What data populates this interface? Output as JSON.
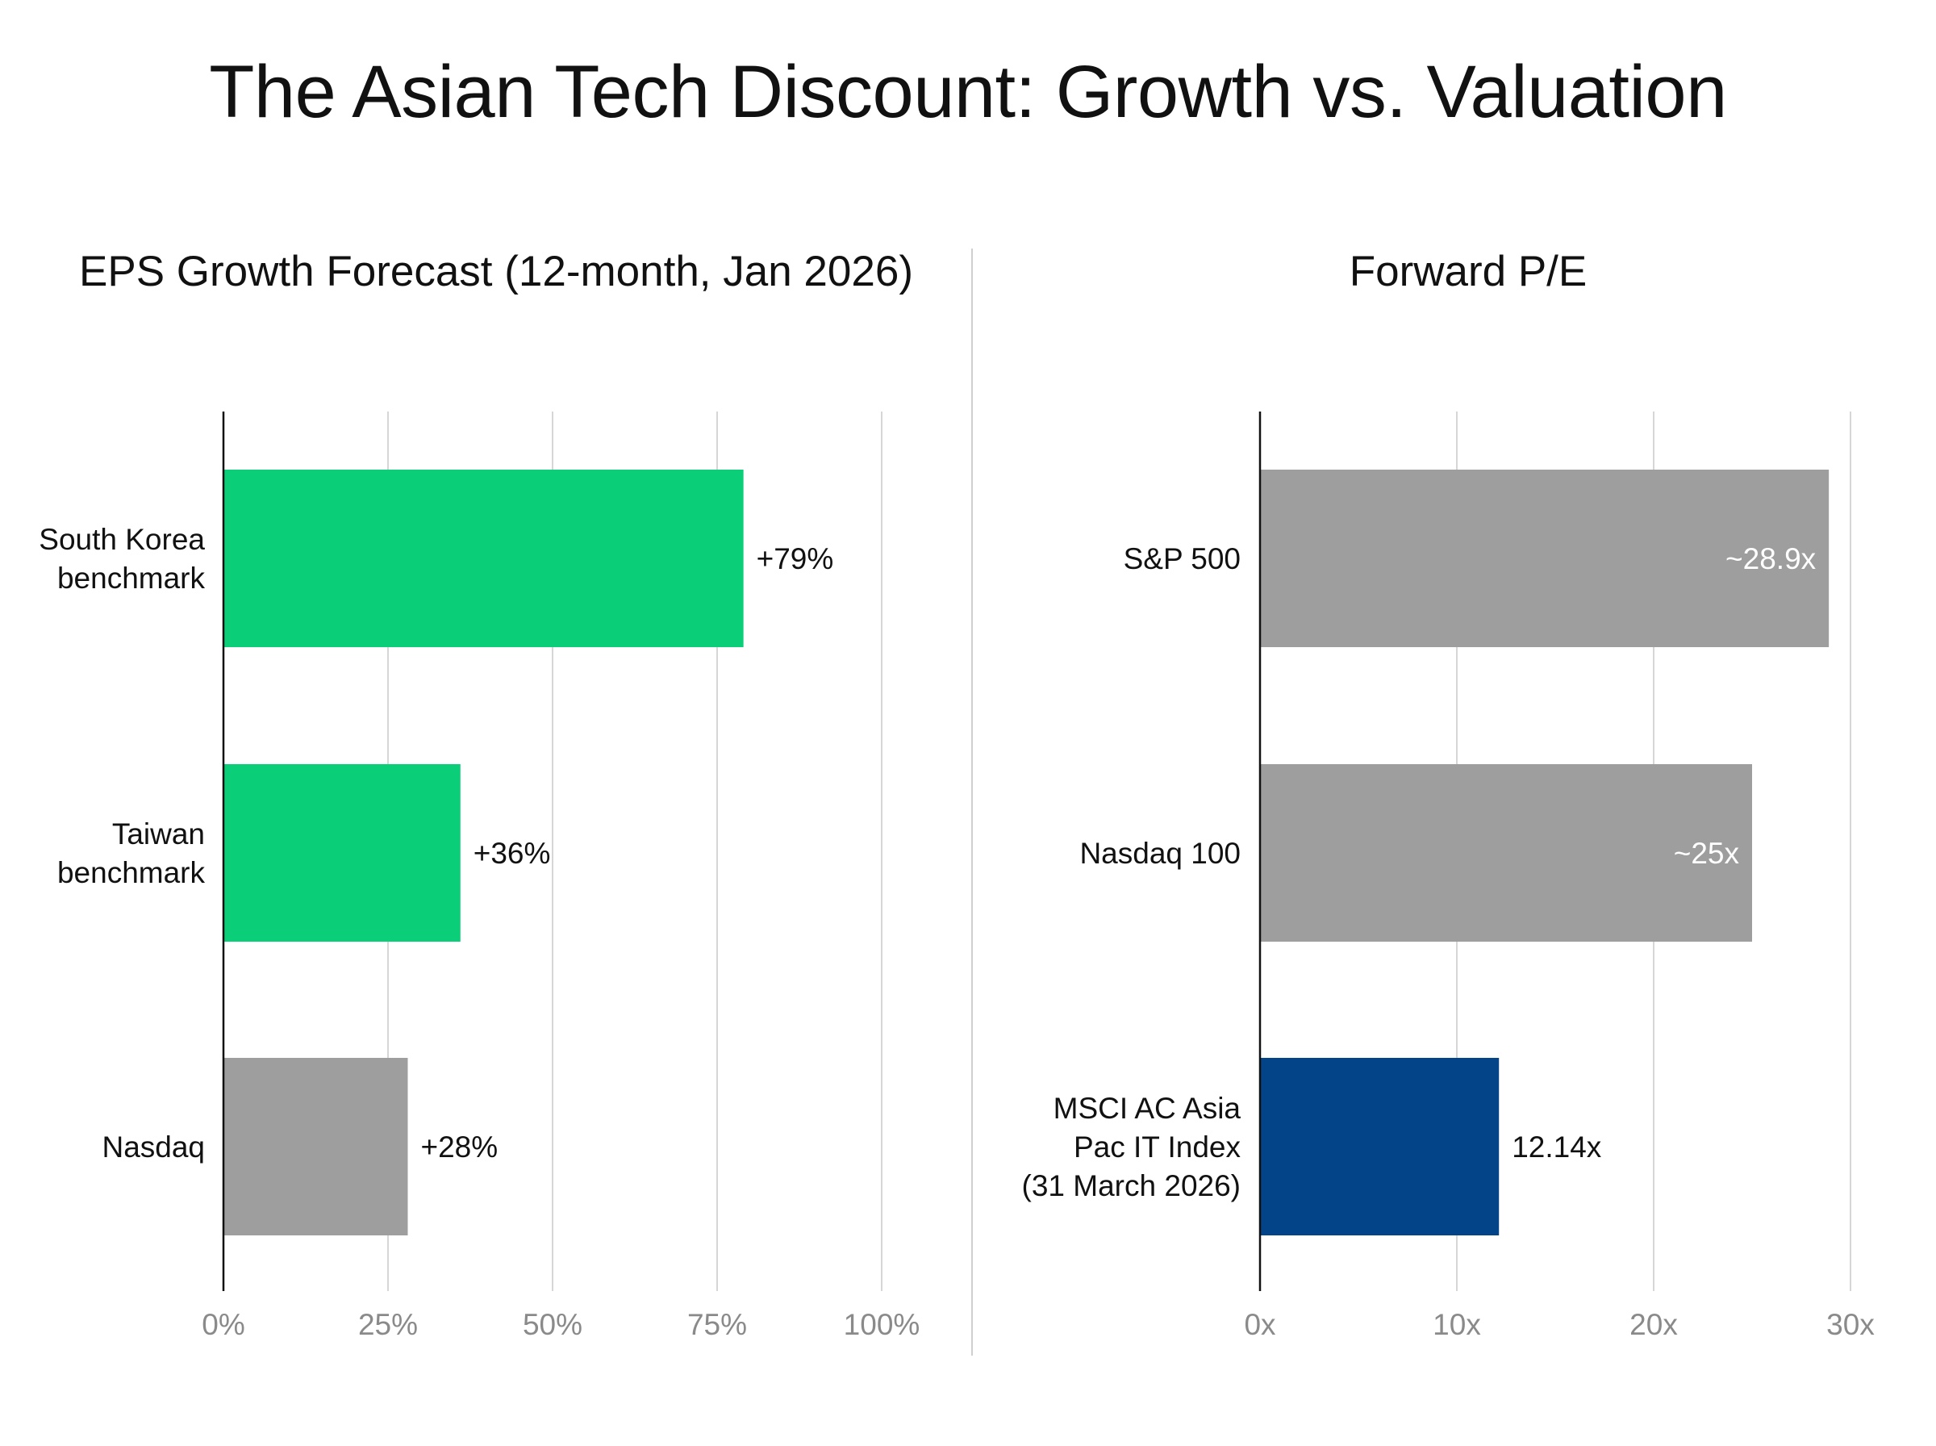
{
  "title": "The Asian Tech Discount: Growth vs. Valuation",
  "chart_data": [
    {
      "type": "bar",
      "orientation": "horizontal",
      "title": "EPS Growth Forecast (12-month, Jan 2026)",
      "categories": [
        [
          "South Korea",
          "benchmark"
        ],
        [
          "Taiwan",
          "benchmark"
        ],
        [
          "Nasdaq"
        ]
      ],
      "values": [
        79,
        36,
        28
      ],
      "value_labels": [
        "+79%",
        "+36%",
        "+28%"
      ],
      "colors": [
        "#0acf78",
        "#0acf78",
        "#9e9e9e"
      ],
      "label_position": "outside",
      "xlim": [
        0,
        100
      ],
      "ticks": [
        0,
        25,
        50,
        75,
        100
      ],
      "tick_labels": [
        "0%",
        "25%",
        "50%",
        "75%",
        "100%"
      ],
      "grid": true
    },
    {
      "type": "bar",
      "orientation": "horizontal",
      "title": "Forward P/E",
      "categories": [
        [
          "S&P 500"
        ],
        [
          "Nasdaq 100"
        ],
        [
          "MSCI AC Asia",
          "Pac IT Index",
          "(31 March 2026)"
        ]
      ],
      "values": [
        28.9,
        25,
        12.14
      ],
      "value_labels": [
        "~28.9x",
        "~25x",
        "12.14x"
      ],
      "colors": [
        "#9e9e9e",
        "#9e9e9e",
        "#034488"
      ],
      "label_positions": [
        "inside",
        "inside",
        "outside"
      ],
      "xlim": [
        0,
        30
      ],
      "ticks": [
        0,
        10,
        20,
        30
      ],
      "tick_labels": [
        "0x",
        "10x",
        "20x",
        "30x"
      ],
      "grid": true
    }
  ]
}
